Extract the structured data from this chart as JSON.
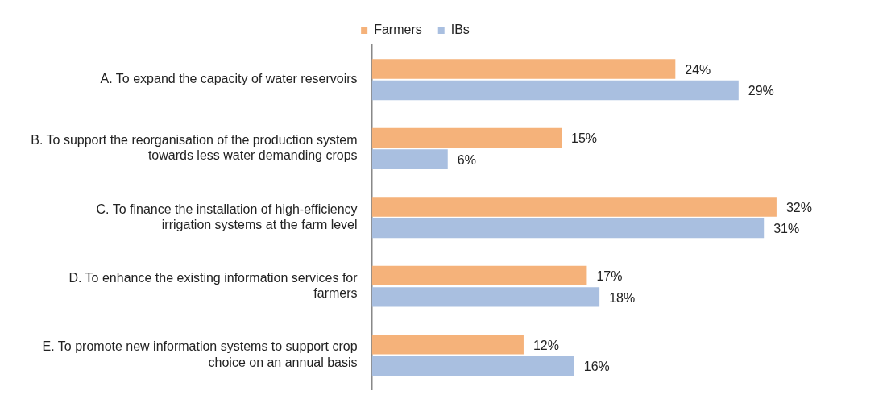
{
  "chart_data": {
    "type": "bar",
    "orientation": "horizontal",
    "legend": "top",
    "tick_labels": "y",
    "categories": [
      "A. To expand the capacity of water reservoirs",
      "B. To support the reorganisation of the production system towards less water demanding crops",
      "C. To finance the installation of high-efficiency irrigation systems at the farm level",
      "D. To enhance the existing information services for farmers",
      "E. To promote new information systems to support crop choice on an annual basis"
    ],
    "series": [
      {
        "name": "Farmers",
        "color": "#f5b27a",
        "values": [
          24,
          15,
          32,
          17,
          12
        ],
        "value_labels": [
          "24%",
          "15%",
          "32%",
          "17%",
          "12%"
        ]
      },
      {
        "name": "IBs",
        "color": "#a9bfe0",
        "values": [
          29,
          6,
          31,
          18,
          16
        ],
        "value_labels": [
          "29%",
          "6%",
          "31%",
          "18%",
          "16%"
        ]
      }
    ]
  }
}
